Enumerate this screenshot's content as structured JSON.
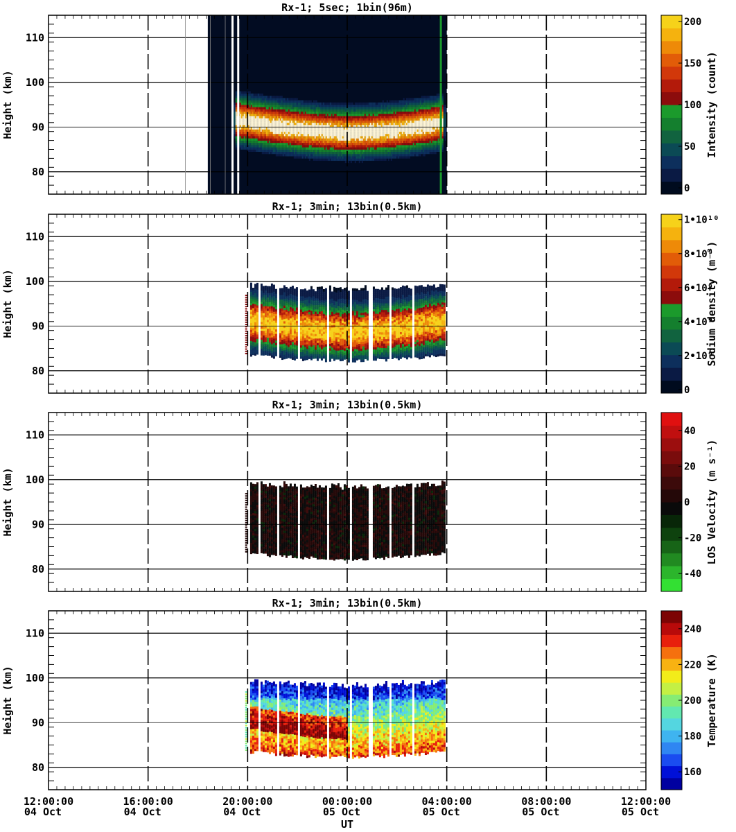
{
  "chart_data": [
    {
      "type": "heatmap",
      "title": "Rx-1;  5sec; 1bin(96m)",
      "ylabel": "Height (km)",
      "ylim": [
        75,
        115
      ],
      "yticks": [
        80,
        90,
        100,
        110
      ],
      "xlim": [
        "04 Oct 12:00:00",
        "05 Oct 12:00:00"
      ],
      "colorbar": {
        "label": "Intensity (count)",
        "range": [
          0,
          200
        ],
        "ticks": [
          "0",
          "50",
          "100",
          "150",
          "200"
        ],
        "colors": [
          "#000b1e",
          "#0a1a44",
          "#0d2f5c",
          "#0b4a55",
          "#11633f",
          "#147f2e",
          "#1b9a2c",
          "#8c0c0c",
          "#b31a0a",
          "#d2380a",
          "#e25c08",
          "#ee8a08",
          "#f5b20e",
          "#f6d21a"
        ]
      },
      "coverage": {
        "start_hours": 6.4,
        "end_hours": 16.0
      },
      "layer": {
        "center_km": 90,
        "top_km": 97,
        "bottom_km": 84,
        "peak_count": 200
      }
    },
    {
      "type": "heatmap",
      "title": "Rx-1; 3min; 13bin(0.5km)",
      "ylabel": "Height (km)",
      "ylim": [
        75,
        115
      ],
      "yticks": [
        80,
        90,
        100,
        110
      ],
      "colorbar": {
        "label": "Sodium density (m⁻³)",
        "range": [
          0,
          10000000000.0
        ],
        "ticks": [
          "0",
          "2•10⁹",
          "4•10⁹",
          "6•10⁹",
          "8•10⁹",
          "1•10¹⁰"
        ],
        "colors": [
          "#000b1e",
          "#0a1a44",
          "#0d2f5c",
          "#0b4a55",
          "#11633f",
          "#147f2e",
          "#1b9a2c",
          "#8c0c0c",
          "#b31a0a",
          "#d2380a",
          "#e25c08",
          "#ee8a08",
          "#f5b20e",
          "#f6d21a"
        ]
      },
      "coverage": {
        "start_hours": 7.9,
        "end_hours": 15.9
      }
    },
    {
      "type": "heatmap",
      "title": "Rx-1; 3min; 13bin(0.5km)",
      "ylabel": "Height (km)",
      "ylim": [
        75,
        115
      ],
      "yticks": [
        80,
        90,
        100,
        110
      ],
      "colorbar": {
        "label": "LOS Velocity (m s⁻¹)",
        "range": [
          -50,
          50
        ],
        "ticks": [
          "-40",
          "-20",
          "0",
          "20",
          "40"
        ],
        "colors": [
          "#33e033",
          "#2cb52c",
          "#218a21",
          "#176417",
          "#0e420e",
          "#082608",
          "#0a0a0a",
          "#240808",
          "#3c0a0a",
          "#5a0b0b",
          "#7a0c0c",
          "#9c0e0e",
          "#c00f0f",
          "#e01010"
        ]
      },
      "coverage": {
        "start_hours": 7.9,
        "end_hours": 15.9
      }
    },
    {
      "type": "heatmap",
      "title": "Rx-1; 3min; 13bin(0.5km)",
      "ylabel": "Height (km)",
      "xlabel": "UT",
      "ylim": [
        75,
        115
      ],
      "yticks": [
        80,
        90,
        100,
        110
      ],
      "xticks": [
        {
          "time": "12:00:00",
          "date": "04 Oct"
        },
        {
          "time": "16:00:00",
          "date": "04 Oct"
        },
        {
          "time": "20:00:00",
          "date": "04 Oct"
        },
        {
          "time": "00:00:00",
          "date": "05 Oct"
        },
        {
          "time": "04:00:00",
          "date": "05 Oct"
        },
        {
          "time": "08:00:00",
          "date": "05 Oct"
        },
        {
          "time": "12:00:00",
          "date": "05 Oct"
        }
      ],
      "colorbar": {
        "label": "Temperature (K)",
        "range": [
          150,
          250
        ],
        "ticks": [
          "160",
          "180",
          "200",
          "220",
          "240"
        ],
        "colors": [
          "#0000a0",
          "#0010d8",
          "#1a4cf0",
          "#2f86f2",
          "#3fb4f0",
          "#54d6e0",
          "#62e8b0",
          "#86ec74",
          "#c4f044",
          "#f2ec1a",
          "#f8b212",
          "#f5700e",
          "#e8200c",
          "#b80a0a",
          "#7c0404"
        ]
      },
      "coverage": {
        "start_hours": 7.9,
        "end_hours": 15.9
      }
    }
  ]
}
